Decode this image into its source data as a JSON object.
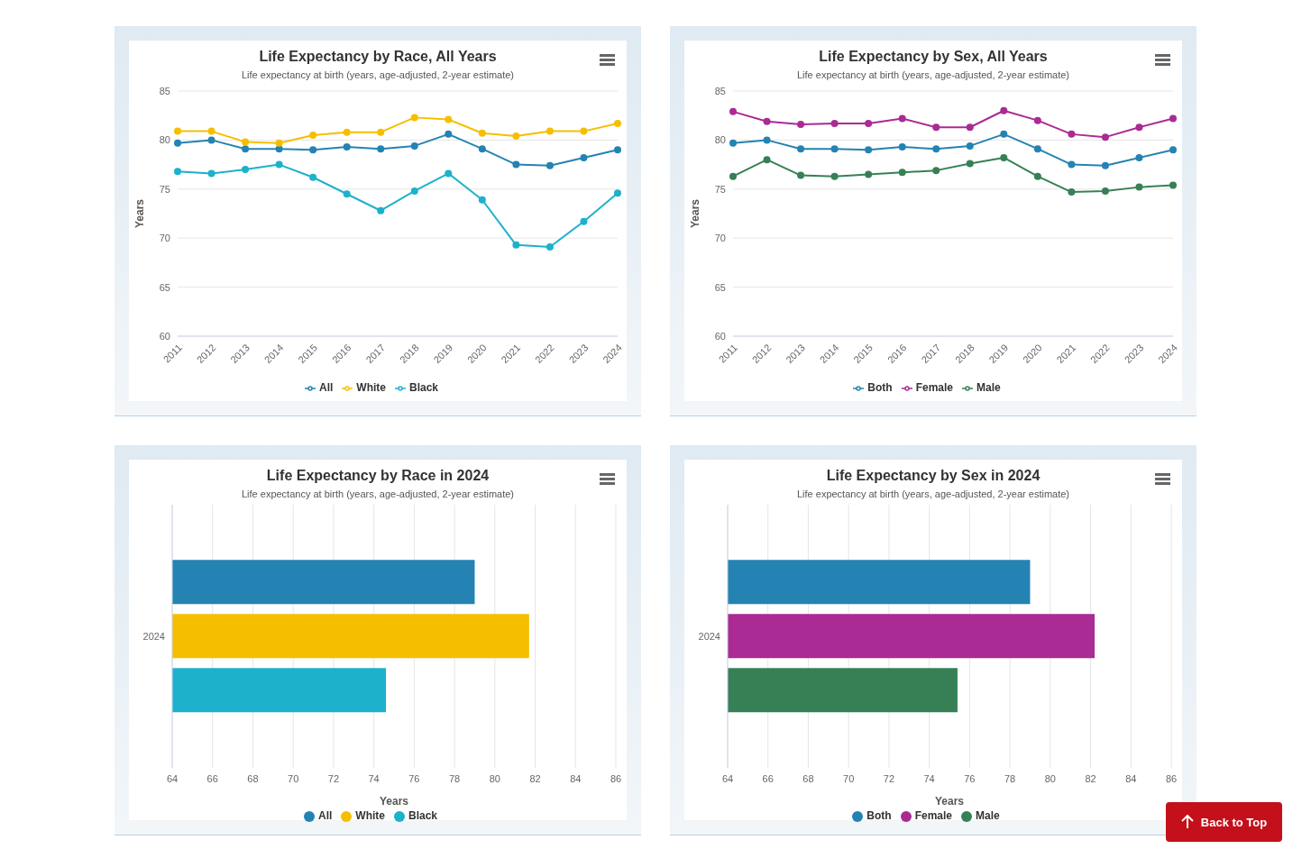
{
  "chart_data": [
    {
      "type": "line",
      "title": "Life Expectancy by Race, All Years",
      "subtitle": "Life expectancy at birth (years, age-adjusted, 2-year estimate)",
      "ylabel": "Years",
      "categories": [
        "2011",
        "2012",
        "2013",
        "2014",
        "2015",
        "2016",
        "2017",
        "2018",
        "2019",
        "2020",
        "2021",
        "2022",
        "2023",
        "2024"
      ],
      "series": [
        {
          "name": "All",
          "color": "#2483b3",
          "values": [
            79.7,
            80.0,
            79.1,
            79.1,
            79.0,
            79.3,
            79.1,
            79.4,
            80.6,
            79.1,
            77.5,
            77.4,
            78.2,
            79.0
          ]
        },
        {
          "name": "White",
          "color": "#f5bf00",
          "values": [
            80.9,
            80.9,
            79.8,
            79.7,
            80.5,
            80.8,
            80.8,
            82.3,
            82.1,
            80.7,
            80.4,
            80.9,
            80.9,
            81.7
          ]
        },
        {
          "name": "Black",
          "color": "#1db1cb",
          "values": [
            76.8,
            76.6,
            77.0,
            77.5,
            76.2,
            74.5,
            72.8,
            74.8,
            76.6,
            73.9,
            69.3,
            69.1,
            71.7,
            74.6
          ]
        }
      ],
      "ylim": [
        60,
        85
      ],
      "yticks": [
        60,
        65,
        70,
        75,
        80,
        85
      ],
      "grid": "y",
      "legend": "bottom",
      "marker": "circle"
    },
    {
      "type": "line",
      "title": "Life Expectancy by Sex, All Years",
      "subtitle": "Life expectancy at birth (years, age-adjusted, 2-year estimate)",
      "ylabel": "Years",
      "categories": [
        "2011",
        "2012",
        "2013",
        "2014",
        "2015",
        "2016",
        "2017",
        "2018",
        "2019",
        "2020",
        "2021",
        "2022",
        "2023",
        "2024"
      ],
      "series": [
        {
          "name": "Both",
          "color": "#2483b3",
          "values": [
            79.7,
            80.0,
            79.1,
            79.1,
            79.0,
            79.3,
            79.1,
            79.4,
            80.6,
            79.1,
            77.5,
            77.4,
            78.2,
            79.0
          ]
        },
        {
          "name": "Female",
          "color": "#a92b93",
          "values": [
            82.9,
            81.9,
            81.6,
            81.7,
            81.7,
            82.2,
            81.3,
            81.3,
            83.0,
            82.0,
            80.6,
            80.3,
            81.3,
            82.2
          ]
        },
        {
          "name": "Male",
          "color": "#378056",
          "values": [
            76.3,
            78.0,
            76.4,
            76.3,
            76.5,
            76.7,
            76.9,
            77.6,
            78.2,
            76.3,
            74.7,
            74.8,
            75.2,
            75.4
          ]
        }
      ],
      "ylim": [
        60,
        85
      ],
      "yticks": [
        60,
        65,
        70,
        75,
        80,
        85
      ],
      "grid": "y",
      "legend": "bottom",
      "marker": "circle"
    },
    {
      "type": "bar",
      "orientation": "horizontal",
      "title": "Life Expectancy by Race in 2024",
      "subtitle": "Life expectancy at birth (years, age-adjusted, 2-year estimate)",
      "xlabel": "Years",
      "categories": [
        "2024"
      ],
      "series": [
        {
          "name": "All",
          "color": "#2483b3",
          "values": [
            79.0
          ]
        },
        {
          "name": "White",
          "color": "#f5bf00",
          "values": [
            81.7
          ]
        },
        {
          "name": "Black",
          "color": "#1db1cb",
          "values": [
            74.6
          ]
        }
      ],
      "xlim": [
        64,
        86
      ],
      "xticks": [
        64,
        66,
        68,
        70,
        72,
        74,
        76,
        78,
        80,
        82,
        84,
        86
      ],
      "grid": "x",
      "legend": "bottom"
    },
    {
      "type": "bar",
      "orientation": "horizontal",
      "title": "Life Expectancy by Sex in 2024",
      "subtitle": "Life expectancy at birth (years, age-adjusted, 2-year estimate)",
      "xlabel": "Years",
      "categories": [
        "2024"
      ],
      "series": [
        {
          "name": "Both",
          "color": "#2483b3",
          "values": [
            79.0
          ]
        },
        {
          "name": "Female",
          "color": "#a92b93",
          "values": [
            82.2
          ]
        },
        {
          "name": "Male",
          "color": "#378056",
          "values": [
            75.4
          ]
        }
      ],
      "xlim": [
        64,
        86
      ],
      "xticks": [
        64,
        66,
        68,
        70,
        72,
        74,
        76,
        78,
        80,
        82,
        84,
        86
      ],
      "grid": "x",
      "legend": "bottom",
      "annotations": [
        "Back to Top"
      ]
    }
  ]
}
